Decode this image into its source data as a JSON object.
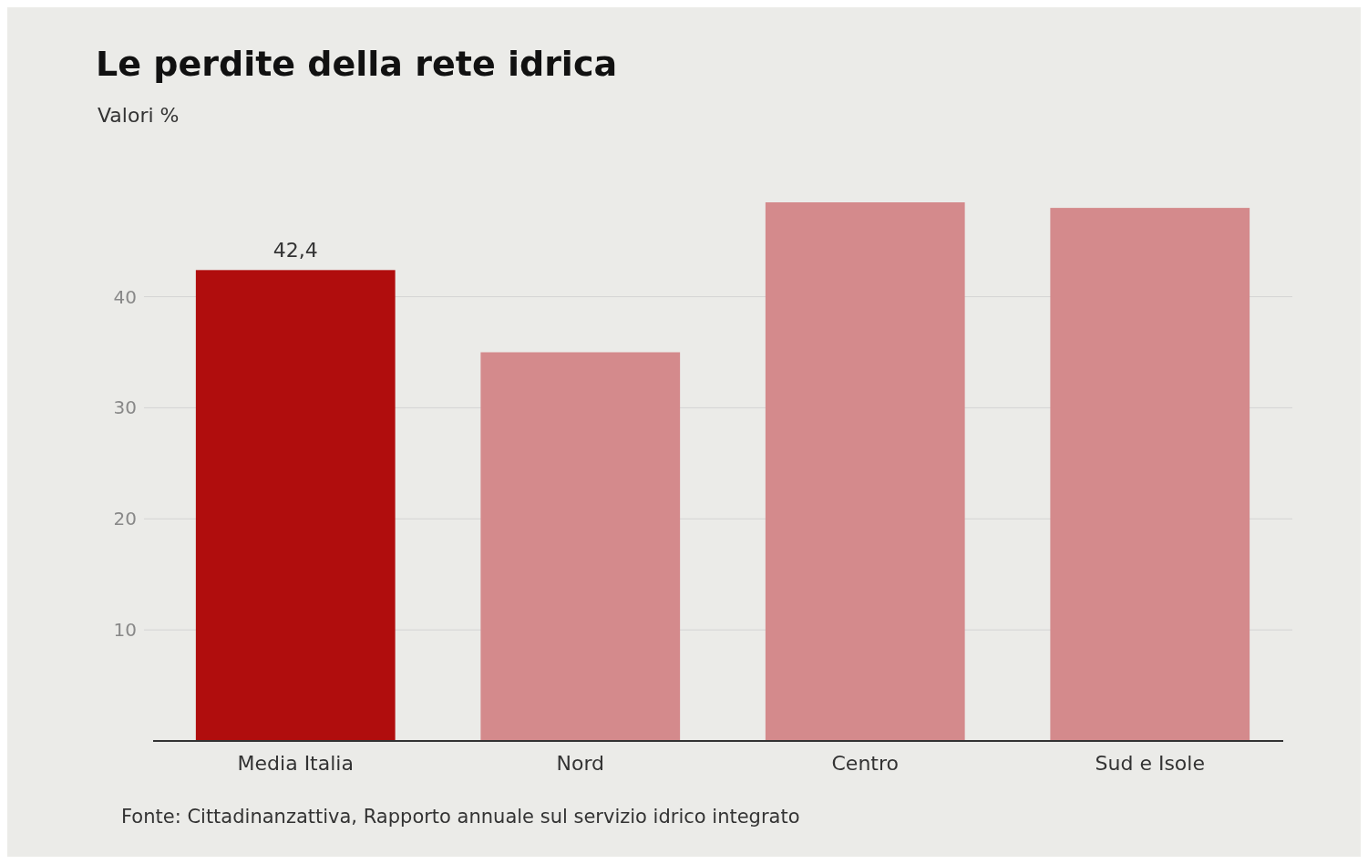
{
  "chart_data": {
    "type": "bar",
    "title": "Le perdite della rete idrica",
    "subtitle": "Valori %",
    "categories": [
      "Media Italia",
      "Nord",
      "Centro",
      "Sud e Isole"
    ],
    "values": [
      42.4,
      35,
      48.5,
      48
    ],
    "colors": [
      "#b00d0d",
      "#d48a8c",
      "#d48a8c",
      "#d48a8c"
    ],
    "value_labels": [
      "42,4",
      null,
      null,
      null
    ],
    "ylim": [
      0,
      48.5
    ],
    "yticks": [
      10,
      20,
      30,
      40
    ],
    "grid": "y",
    "annotations": [
      "Fonte: Cittadinanzattiva, Rapporto annuale sul servizio idrico integrato"
    ]
  }
}
